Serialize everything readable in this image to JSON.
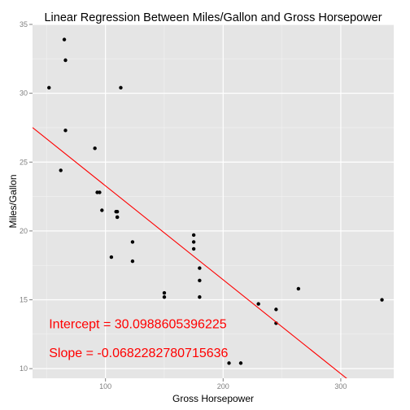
{
  "chart_data": {
    "type": "scatter",
    "title": "Linear Regression Between Miles/Gallon and Gross Horsepower",
    "xlabel": "Gross Horsepower",
    "ylabel": "Miles/Gallon",
    "xlim": [
      38,
      345
    ],
    "ylim": [
      9.3,
      35
    ],
    "xticks": [
      100,
      200,
      300
    ],
    "yticks": [
      10,
      15,
      20,
      25,
      30,
      35
    ],
    "grid": true,
    "points": [
      {
        "x": 110,
        "y": 21.0
      },
      {
        "x": 110,
        "y": 21.0
      },
      {
        "x": 93,
        "y": 22.8
      },
      {
        "x": 110,
        "y": 21.4
      },
      {
        "x": 175,
        "y": 18.7
      },
      {
        "x": 105,
        "y": 18.1
      },
      {
        "x": 245,
        "y": 14.3
      },
      {
        "x": 62,
        "y": 24.4
      },
      {
        "x": 95,
        "y": 22.8
      },
      {
        "x": 123,
        "y": 19.2
      },
      {
        "x": 123,
        "y": 17.8
      },
      {
        "x": 180,
        "y": 16.4
      },
      {
        "x": 180,
        "y": 17.3
      },
      {
        "x": 180,
        "y": 15.2
      },
      {
        "x": 205,
        "y": 10.4
      },
      {
        "x": 215,
        "y": 10.4
      },
      {
        "x": 230,
        "y": 14.7
      },
      {
        "x": 66,
        "y": 32.4
      },
      {
        "x": 52,
        "y": 30.4
      },
      {
        "x": 65,
        "y": 33.9
      },
      {
        "x": 97,
        "y": 21.5
      },
      {
        "x": 150,
        "y": 15.5
      },
      {
        "x": 150,
        "y": 15.2
      },
      {
        "x": 245,
        "y": 13.3
      },
      {
        "x": 175,
        "y": 19.2
      },
      {
        "x": 66,
        "y": 27.3
      },
      {
        "x": 91,
        "y": 26.0
      },
      {
        "x": 113,
        "y": 30.4
      },
      {
        "x": 264,
        "y": 15.8
      },
      {
        "x": 175,
        "y": 19.7
      },
      {
        "x": 335,
        "y": 15.0
      },
      {
        "x": 109,
        "y": 21.4
      }
    ],
    "regression": {
      "intercept": 30.0988605396225,
      "slope": -0.0682282780715636,
      "color": "#ff0000"
    },
    "annotations": [
      {
        "text": "Intercept =  30.0988605396225",
        "x": 52,
        "y": 13.3,
        "color": "#ff0000"
      },
      {
        "text": "Slope =  -0.0682282780715636",
        "x": 52,
        "y": 11.2,
        "color": "#ff0000"
      }
    ],
    "colors": {
      "panel": "#e5e5e5",
      "grid_major": "#ffffff",
      "grid_minor": "#f2f2f2",
      "point": "#000000"
    }
  }
}
